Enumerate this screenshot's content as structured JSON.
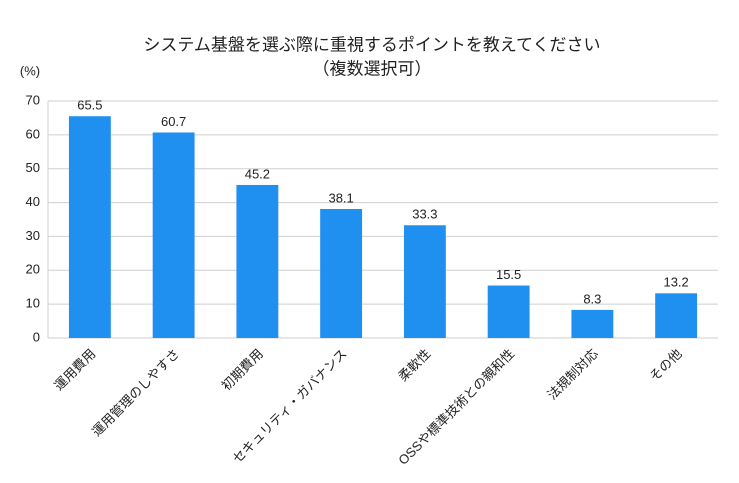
{
  "chart_data": {
    "type": "bar",
    "title": "システム基盤を選ぶ際に重視するポイントを教えてください",
    "subtitle": "（複数選択可）",
    "y_axis_label": "(%)",
    "categories": [
      "運用費用",
      "運用管理のしやすさ",
      "初期費用",
      "セキュリティ・ガバナンス",
      "柔軟性",
      "OSSや標準技術との親和性",
      "法規制対応",
      "その他"
    ],
    "values": [
      65.5,
      60.7,
      45.2,
      38.1,
      33.3,
      15.5,
      8.3,
      13.2
    ],
    "color": "#1f8ff0",
    "ylim": [
      0,
      70
    ],
    "yticks": [
      0,
      10,
      20,
      30,
      40,
      50,
      60,
      70
    ],
    "grid": true,
    "data_labels": true
  }
}
